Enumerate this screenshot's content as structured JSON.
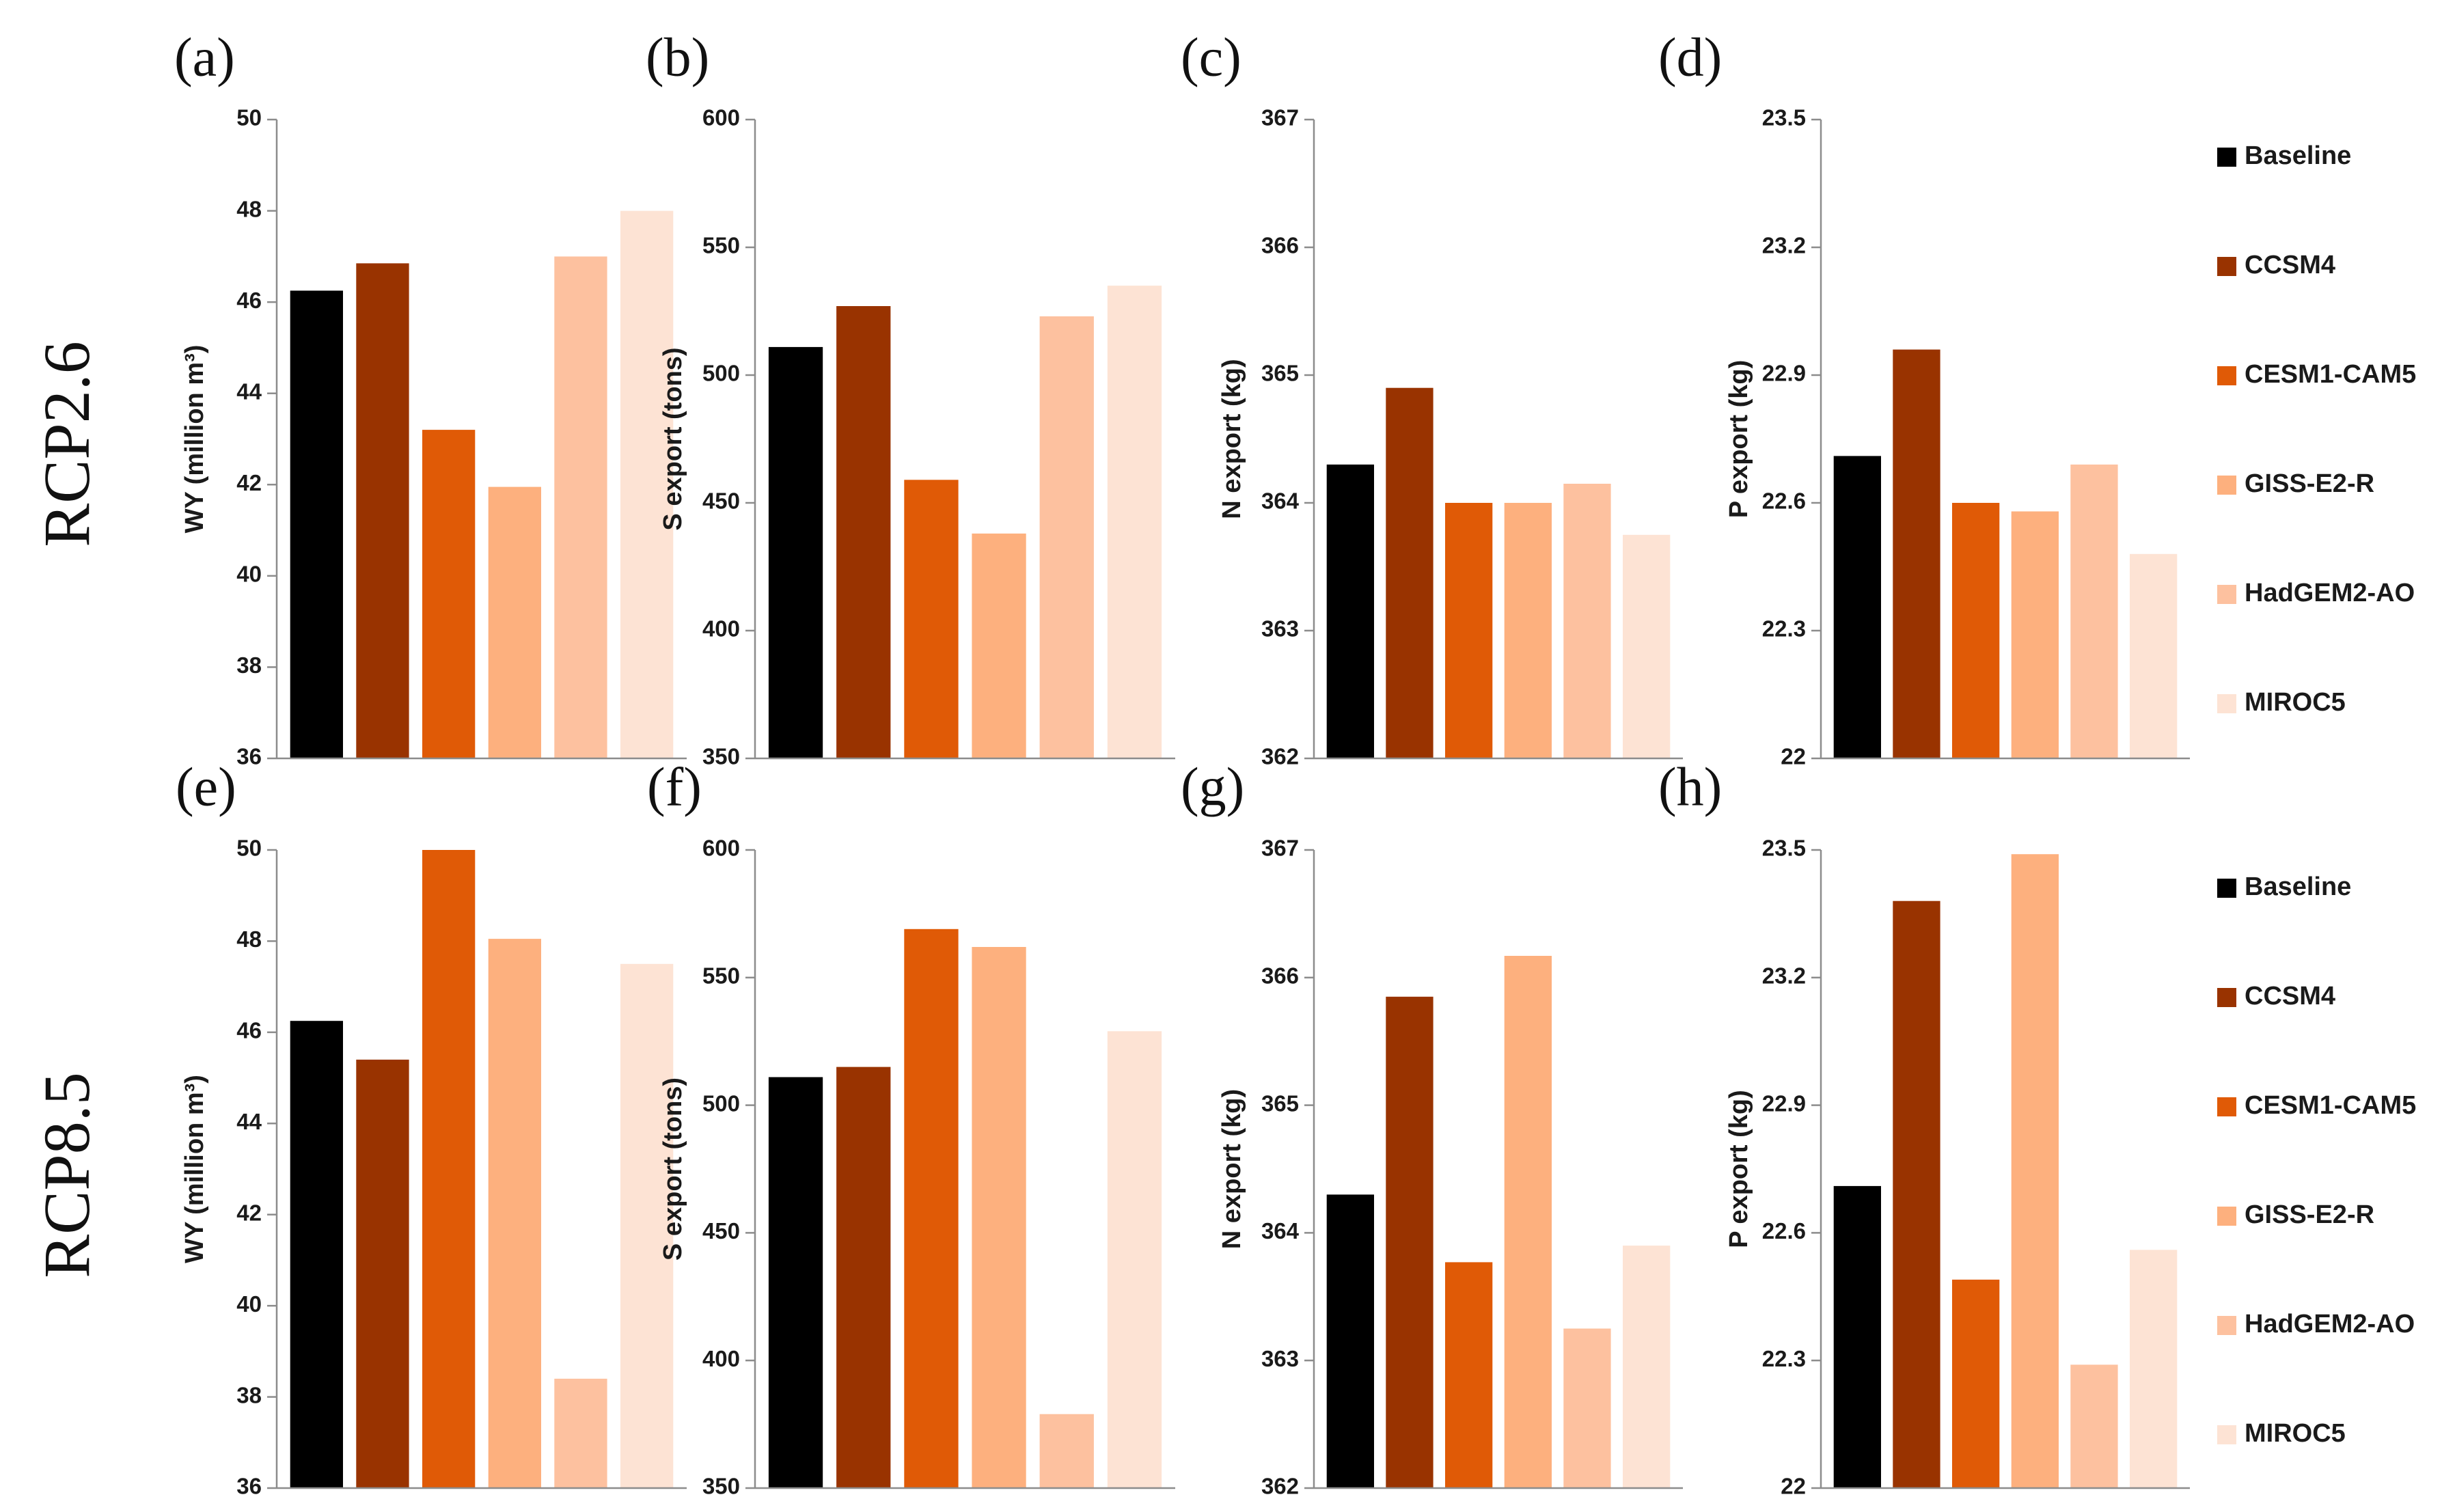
{
  "series_names": [
    "Baseline",
    "CCSM4",
    "CESM1-CAM5",
    "GISS-E2-R",
    "HadGEM2-AO",
    "MIROC5"
  ],
  "colors": [
    "#000000",
    "#993300",
    "#e05a06",
    "#fdb07e",
    "#fdc19f",
    "#fde3d4"
  ],
  "row_labels": [
    "RCP2.6",
    "RCP8.5"
  ],
  "chart_data": [
    {
      "type": "bar",
      "panel": "(a)",
      "scenario": "RCP2.6",
      "ylabel": "WY (million m³)",
      "ylim": [
        36,
        50
      ],
      "yticks": [
        "36",
        "38",
        "40",
        "42",
        "44",
        "46",
        "48",
        "50"
      ],
      "yticks_values": [
        36,
        38,
        40,
        42,
        44,
        46,
        48,
        50
      ],
      "categories": [
        "Baseline",
        "CCSM4",
        "CESM1-CAM5",
        "GISS-E2-R",
        "HadGEM2-AO",
        "MIROC5"
      ],
      "values": [
        46.25,
        46.85,
        43.2,
        41.95,
        47.0,
        48.0
      ]
    },
    {
      "type": "bar",
      "panel": "(b)",
      "scenario": "RCP2.6",
      "ylabel": "S export (tons)",
      "ylim": [
        350,
        600
      ],
      "yticks": [
        "350",
        "400",
        "450",
        "500",
        "550",
        "600"
      ],
      "yticks_values": [
        350,
        400,
        450,
        500,
        550,
        600
      ],
      "categories": [
        "Baseline",
        "CCSM4",
        "CESM1-CAM5",
        "GISS-E2-R",
        "HadGEM2-AO",
        "MIROC5"
      ],
      "values": [
        511,
        527,
        459,
        438,
        523,
        535
      ]
    },
    {
      "type": "bar",
      "panel": "(c)",
      "scenario": "RCP2.6",
      "ylabel": "N export (kg)",
      "ylim": [
        362,
        367
      ],
      "yticks": [
        "362",
        "363",
        "364",
        "365",
        "366",
        "367"
      ],
      "yticks_values": [
        362,
        363,
        364,
        365,
        366,
        367
      ],
      "categories": [
        "Baseline",
        "CCSM4",
        "CESM1-CAM5",
        "GISS-E2-R",
        "HadGEM2-AO",
        "MIROC5"
      ],
      "values": [
        364.3,
        364.9,
        364.0,
        364.0,
        364.15,
        363.75
      ]
    },
    {
      "type": "bar",
      "panel": "(d)",
      "scenario": "RCP2.6",
      "ylabel": "P export (kg)",
      "ylim": [
        22,
        23.5
      ],
      "yticks": [
        "22",
        "22.3",
        "22.6",
        "22.9",
        "23.2",
        "23.5"
      ],
      "yticks_values": [
        22,
        22.3,
        22.6,
        22.9,
        23.2,
        23.5
      ],
      "categories": [
        "Baseline",
        "CCSM4",
        "CESM1-CAM5",
        "GISS-E2-R",
        "HadGEM2-AO",
        "MIROC5"
      ],
      "values": [
        22.71,
        22.96,
        22.6,
        22.58,
        22.69,
        22.48
      ]
    },
    {
      "type": "bar",
      "panel": "(e)",
      "scenario": "RCP8.5",
      "ylabel": "WY (million m³)",
      "ylim": [
        36,
        50
      ],
      "yticks": [
        "36",
        "38",
        "40",
        "42",
        "44",
        "46",
        "48",
        "50"
      ],
      "yticks_values": [
        36,
        38,
        40,
        42,
        44,
        46,
        48,
        50
      ],
      "categories": [
        "Baseline",
        "CCSM4",
        "CESM1-CAM5",
        "GISS-E2-R",
        "HadGEM2-AO",
        "MIROC5"
      ],
      "values": [
        46.25,
        45.4,
        50.0,
        48.05,
        38.4,
        47.5
      ]
    },
    {
      "type": "bar",
      "panel": "(f)",
      "scenario": "RCP8.5",
      "ylabel": "S export (tons)",
      "ylim": [
        350,
        600
      ],
      "yticks": [
        "350",
        "400",
        "450",
        "500",
        "550",
        "600"
      ],
      "yticks_values": [
        350,
        400,
        450,
        500,
        550,
        600
      ],
      "categories": [
        "Baseline",
        "CCSM4",
        "CESM1-CAM5",
        "GISS-E2-R",
        "HadGEM2-AO",
        "MIROC5"
      ],
      "values": [
        511,
        515,
        569,
        562,
        379,
        529
      ]
    },
    {
      "type": "bar",
      "panel": "(g)",
      "scenario": "RCP8.5",
      "ylabel": "N export (kg)",
      "ylim": [
        362,
        367
      ],
      "yticks": [
        "362",
        "363",
        "364",
        "365",
        "366",
        "367"
      ],
      "yticks_values": [
        362,
        363,
        364,
        365,
        366,
        367
      ],
      "categories": [
        "Baseline",
        "CCSM4",
        "CESM1-CAM5",
        "GISS-E2-R",
        "HadGEM2-AO",
        "MIROC5"
      ],
      "values": [
        364.3,
        365.85,
        363.77,
        366.17,
        363.25,
        363.9
      ]
    },
    {
      "type": "bar",
      "panel": "(h)",
      "scenario": "RCP8.5",
      "ylabel": "P export (kg)",
      "ylim": [
        22,
        23.5
      ],
      "yticks": [
        "22",
        "22.3",
        "22.6",
        "22.9",
        "23.2",
        "23.5"
      ],
      "yticks_values": [
        22,
        22.3,
        22.6,
        22.9,
        23.2,
        23.5
      ],
      "categories": [
        "Baseline",
        "CCSM4",
        "CESM1-CAM5",
        "GISS-E2-R",
        "HadGEM2-AO",
        "MIROC5"
      ],
      "values": [
        22.71,
        23.38,
        22.49,
        23.49,
        22.29,
        22.56
      ]
    }
  ]
}
